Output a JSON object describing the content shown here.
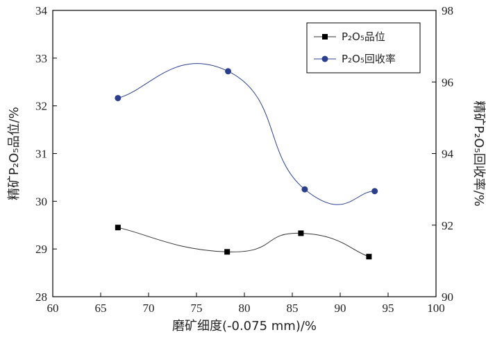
{
  "chart_data": {
    "type": "line",
    "x_axis": {
      "label": "磨矿细度(-0.075 mm)/%",
      "range": [
        60,
        100
      ],
      "ticks": [
        60,
        65,
        70,
        75,
        80,
        85,
        90,
        95,
        100
      ]
    },
    "y_left": {
      "label": "精矿P₂O₅品位/%",
      "range": [
        28,
        34
      ],
      "ticks": [
        28,
        29,
        30,
        31,
        32,
        33,
        34
      ]
    },
    "y_right": {
      "label": "精矿P₂O₅回收率/%",
      "range": [
        90,
        98
      ],
      "ticks": [
        90,
        92,
        94,
        96,
        98
      ]
    },
    "legend_position": "top-right",
    "series": [
      {
        "name": "P₂O₅品位",
        "axis": "left",
        "marker": "square",
        "color": "#000000",
        "x": [
          66.8,
          78.2,
          85.9,
          93.0
        ],
        "y": [
          29.45,
          28.94,
          29.33,
          28.84
        ]
      },
      {
        "name": "P₂O₅回收率",
        "axis": "right",
        "marker": "circle",
        "color": "#2b3f8f",
        "x": [
          66.8,
          78.3,
          86.3,
          93.6
        ],
        "y": [
          95.55,
          96.3,
          93.0,
          92.95
        ]
      }
    ]
  }
}
